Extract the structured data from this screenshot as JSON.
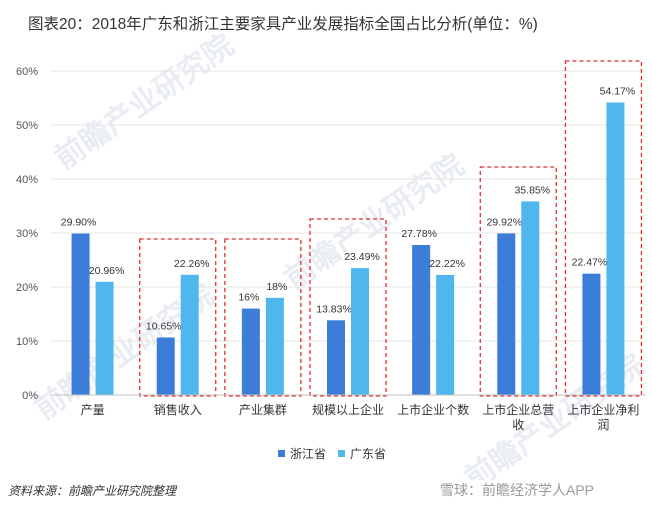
{
  "title": "图表20：2018年广东和浙江主要家具产业发展指标全国占比分析(单位：%)",
  "source": "资料来源：前瞻产业研究院整理",
  "footer_mark": "雪球：前瞻经济学人APP",
  "watermark": "前瞻产业研究院",
  "colors": {
    "zhejiang": "#3b7dd8",
    "guangdong": "#4fb6ee",
    "highlight_box": "#e03030",
    "grid": "#e6e6e6"
  },
  "chart_data": {
    "type": "bar",
    "title": "图表20：2018年广东和浙江主要家具产业发展指标全国占比分析(单位：%)",
    "categories": [
      "产量",
      "销售收入",
      "产业集群",
      "规模以上企业",
      "上市企业个数",
      "上市企业总营收",
      "上市企业净利润"
    ],
    "category_lines": [
      [
        "产量"
      ],
      [
        "销售收入"
      ],
      [
        "产业集群"
      ],
      [
        "规模以上企业"
      ],
      [
        "上市企业个数"
      ],
      [
        "上市企业总营",
        "收"
      ],
      [
        "上市企业净利",
        "润"
      ]
    ],
    "series": [
      {
        "name": "浙江省",
        "values": [
          29.9,
          10.65,
          16,
          13.83,
          27.78,
          29.92,
          22.47
        ],
        "labels": [
          "29.90%",
          "10.65%",
          "16%",
          "13.83%",
          "27.78%",
          "29.92%",
          "22.47%"
        ]
      },
      {
        "name": "广东省",
        "values": [
          20.96,
          22.26,
          18,
          23.49,
          22.22,
          35.85,
          54.17
        ],
        "labels": [
          "20.96%",
          "22.26%",
          "18%",
          "23.49%",
          "22.22%",
          "35.85%",
          "54.17%"
        ]
      }
    ],
    "yticks": [
      "0%",
      "10%",
      "20%",
      "30%",
      "40%",
      "50%",
      "60%"
    ],
    "ylim": [
      0,
      60
    ],
    "highlighted_categories": [
      1,
      2,
      3,
      5,
      6
    ],
    "legend_position": "bottom"
  }
}
